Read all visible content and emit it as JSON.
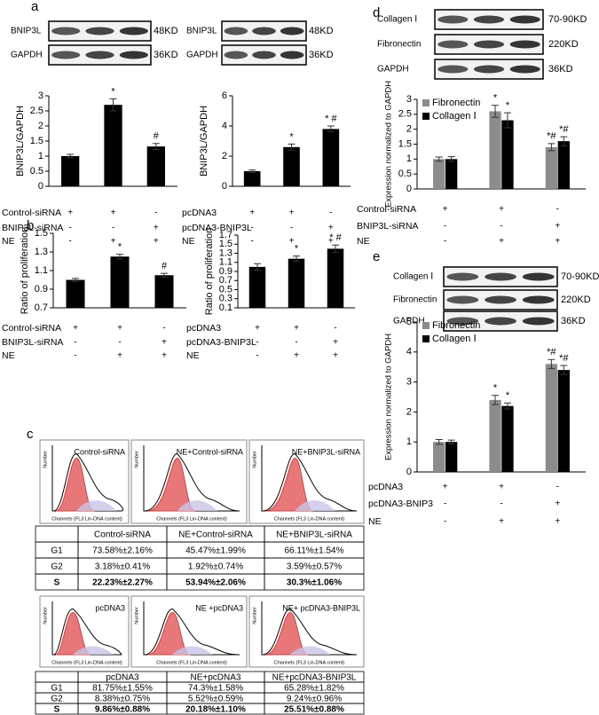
{
  "panel_labels": [
    "a",
    "b",
    "c",
    "d",
    "e"
  ],
  "blots": [
    {
      "bands": [
        {
          "name": "BNIP3L",
          "size": "48KD"
        },
        {
          "name": "GAPDH",
          "size": "36KD"
        }
      ]
    },
    {
      "bands": [
        {
          "name": "BNIP3L",
          "size": "48KD"
        },
        {
          "name": "GAPDH",
          "size": "36KD"
        }
      ]
    },
    {
      "bands": [
        {
          "name": "Collagen Ⅰ",
          "size": "70-90KD"
        },
        {
          "name": "Fibronectin",
          "size": "220KD"
        },
        {
          "name": "GAPDH",
          "size": "36KD"
        }
      ]
    },
    {
      "bands": [
        {
          "name": "Collagen Ⅰ",
          "size": "70-90KD"
        },
        {
          "name": "Fibronectin",
          "size": "220KD"
        },
        {
          "name": "GAPDH",
          "size": "36KD"
        }
      ]
    }
  ],
  "flow": [
    {
      "samples": [
        "Control-siRNA",
        "NE+Control-siRNA",
        "NE+BNIP3L-siRNA"
      ]
    },
    {
      "samples": [
        "pcDNA3",
        "NE +pcDNA3",
        "NE+ pcDNA3-BNIP3L"
      ]
    }
  ],
  "flow_axes": {
    "x_label": "Channels (FL3 Lin-DNA content)",
    "y_label": "Number"
  },
  "tables": [
    {
      "header": [
        null,
        "Control-siRNA",
        "NE+Control-siRNA",
        "NE+BNIP3L-siRNA"
      ],
      "rows": [
        [
          "G1",
          "73.58%±2.16%",
          "45.47%±1.99%",
          "66.11%±1.54%"
        ],
        [
          "G2",
          "3.18%±0.41%",
          "1.92%±0.74%",
          "3.59%±0.57%"
        ],
        [
          "S",
          "22.23%±2.27%",
          "53.94%±2.06%",
          "30.3%±1.06%"
        ]
      ]
    },
    {
      "header": [
        null,
        "pcDNA3",
        "NE+pcDNA3",
        "NE+pcDNA3-BNIP3L"
      ],
      "rows": [
        [
          "G1",
          "81.75%±1.55%",
          "74.3%±1.58%",
          "65.28%±1.82%"
        ],
        [
          "G2",
          "8.38%±0.75%",
          "5.52%±0.59%",
          "9.24%±0.96%"
        ],
        [
          "S",
          "9.86%±0.88%",
          "20.18%±1.10%",
          "25.51%±0.88%"
        ]
      ]
    }
  ],
  "chart_data": [
    {
      "type": "bar",
      "y_label": "BNIP3L/GAPDH",
      "color": "#000000",
      "values": [
        1.0,
        2.7,
        1.32
      ],
      "errors": [
        0.06,
        0.2,
        0.1
      ],
      "annotations": [
        null,
        "*",
        "#"
      ],
      "ylim": [
        0,
        3
      ],
      "yticks": [
        0,
        0.5,
        1,
        1.5,
        2,
        2.5,
        3
      ],
      "conditions": [
        {
          "label": "Control-siRNA",
          "marks": [
            "+",
            "+",
            "-"
          ]
        },
        {
          "label": "BNIP3L-siRNA",
          "marks": [
            "-",
            "-",
            "+"
          ]
        },
        {
          "label": "NE",
          "marks": [
            "-",
            "+",
            "+"
          ]
        }
      ]
    },
    {
      "type": "bar",
      "y_label": "BNIP3L/GAPDH",
      "color": "#000000",
      "values": [
        1.0,
        2.6,
        3.8
      ],
      "errors": [
        0.08,
        0.2,
        0.2
      ],
      "annotations": [
        null,
        "*",
        "* #"
      ],
      "ylim": [
        0,
        6
      ],
      "yticks": [
        0,
        2,
        4,
        6
      ],
      "conditions": [
        {
          "label": "pcDNA3",
          "marks": [
            "+",
            "+",
            "-"
          ]
        },
        {
          "label": "pcDNA3-BNIP3L",
          "marks": [
            "-",
            "-",
            "+"
          ]
        },
        {
          "label": "NE",
          "marks": [
            "-",
            "+",
            "+"
          ]
        }
      ]
    },
    {
      "type": "bar",
      "y_label": "Ratio of proliferation",
      "color": "#000000",
      "values": [
        1.0,
        1.25,
        1.05
      ],
      "errors": [
        0.015,
        0.025,
        0.02
      ],
      "annotations": [
        null,
        "*",
        "#"
      ],
      "ylim": [
        0.7,
        1.5
      ],
      "yticks": [
        0.7,
        0.9,
        1.1,
        1.3,
        1.5
      ],
      "conditions": [
        {
          "label": "Control-siRNA",
          "marks": [
            "+",
            "+",
            "-"
          ]
        },
        {
          "label": "BNIP3L-siRNA",
          "marks": [
            "-",
            "-",
            "+"
          ]
        },
        {
          "label": "NE",
          "marks": [
            "-",
            "+",
            "+"
          ]
        }
      ]
    },
    {
      "type": "bar",
      "y_label": "Ratio of proliferation",
      "color": "#000000",
      "values": [
        1.0,
        1.18,
        1.4
      ],
      "errors": [
        0.07,
        0.06,
        0.08
      ],
      "annotations": [
        null,
        "*",
        "* #"
      ],
      "ylim": [
        0.1,
        1.7
      ],
      "yticks": [
        0.1,
        0.3,
        0.5,
        0.7,
        0.9,
        1.1,
        1.3,
        1.5,
        1.7
      ],
      "conditions": [
        {
          "label": "pcDNA3",
          "marks": [
            "+",
            "+",
            "-"
          ]
        },
        {
          "label": "pcDNA3-BNIP3L",
          "marks": [
            "-",
            "-",
            "+"
          ]
        },
        {
          "label": "NE",
          "marks": [
            "-",
            "+",
            "+"
          ]
        }
      ]
    },
    {
      "type": "grouped_bar",
      "y_label": "Expression normalized to GAPDH",
      "legend": "upper left",
      "series": [
        {
          "name": "Fibronectin",
          "color": "#8c8c8c",
          "values": [
            1.0,
            2.6,
            1.4
          ],
          "errors": [
            0.07,
            0.2,
            0.12
          ],
          "annotations": [
            null,
            "*",
            "*#"
          ]
        },
        {
          "name": "Collagen Ⅰ",
          "color": "#000000",
          "values": [
            1.0,
            2.3,
            1.6
          ],
          "errors": [
            0.08,
            0.25,
            0.15
          ],
          "annotations": [
            null,
            "*",
            "*#"
          ]
        }
      ],
      "ylim": [
        0,
        3
      ],
      "yticks": [
        0,
        0.5,
        1,
        1.5,
        2,
        2.5,
        3
      ],
      "conditions": [
        {
          "label": "Control-siRNA",
          "marks": [
            "+",
            "+",
            "-"
          ]
        },
        {
          "label": "BNIP3L-siRNA",
          "marks": [
            "-",
            "-",
            "+"
          ]
        },
        {
          "label": "NE",
          "marks": [
            "-",
            "+",
            "+"
          ]
        }
      ]
    },
    {
      "type": "grouped_bar",
      "y_label": "Expression normalized to GAPDH",
      "legend": "upper left",
      "series": [
        {
          "name": "Fibronectin",
          "color": "#8c8c8c",
          "values": [
            1.0,
            2.4,
            3.6
          ],
          "errors": [
            0.08,
            0.15,
            0.15
          ],
          "annotations": [
            null,
            "*",
            "*#"
          ]
        },
        {
          "name": "Collagen Ⅰ",
          "color": "#000000",
          "values": [
            1.0,
            2.2,
            3.4
          ],
          "errors": [
            0.06,
            0.1,
            0.15
          ],
          "annotations": [
            null,
            "*",
            "*#"
          ]
        }
      ],
      "ylim": [
        0,
        5
      ],
      "yticks": [
        0,
        1,
        2,
        3,
        4,
        5
      ],
      "conditions": [
        {
          "label": "pcDNA3",
          "marks": [
            "+",
            "+",
            "-"
          ]
        },
        {
          "label": "pcDNA3-BNIP3",
          "marks": [
            "-",
            "-",
            "+"
          ]
        },
        {
          "label": "NE",
          "marks": [
            "-",
            "+",
            "+"
          ]
        }
      ]
    }
  ]
}
